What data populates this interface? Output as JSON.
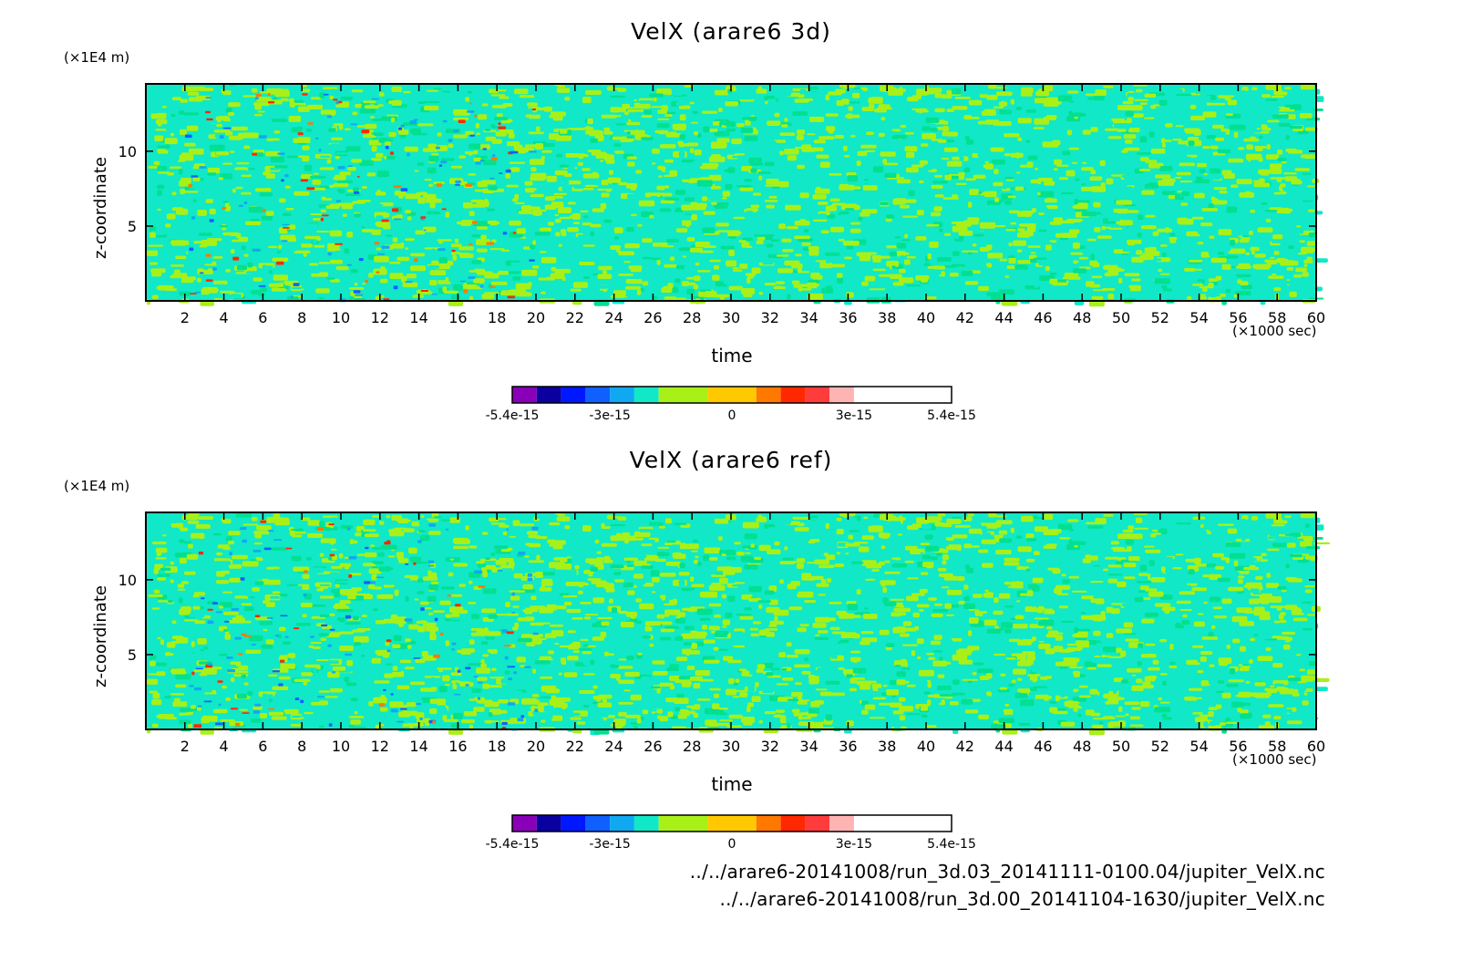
{
  "chart_data": [
    {
      "type": "heatmap",
      "title": "VelX (arare6 3d)",
      "xlabel": "time",
      "x_unit": "(×1000 sec)",
      "ylabel": "z-coordinate",
      "y_unit": "(×1E4 m)",
      "xlim": [
        0,
        60
      ],
      "ylim": [
        0,
        14.5
      ],
      "x_ticks": [
        2,
        4,
        6,
        8,
        10,
        12,
        14,
        16,
        18,
        20,
        22,
        24,
        26,
        28,
        30,
        32,
        34,
        36,
        38,
        40,
        42,
        44,
        46,
        48,
        50,
        52,
        54,
        56,
        58,
        60
      ],
      "y_ticks": [
        5,
        10
      ],
      "colorbar": {
        "levels": [
          -5.4e-15,
          -4.8e-15,
          -4.2e-15,
          -3.6e-15,
          -3e-15,
          -2.4e-15,
          -1.8e-15,
          -6e-16,
          6e-16,
          1.2e-15,
          1.8e-15,
          2.4e-15,
          3e-15,
          4.2e-15,
          5.4e-15
        ],
        "tick_labels": [
          "-5.4e-15",
          "-3e-15",
          "0",
          "3e-15",
          "5.4e-15"
        ]
      },
      "field": "dominant near-zero noise (cyan/green/yellow-green) with sparse blue and red extremes near t=3-18 (×1000 sec)"
    },
    {
      "type": "heatmap",
      "title": "VelX (arare6 ref)",
      "xlabel": "time",
      "x_unit": "(×1000 sec)",
      "ylabel": "z-coordinate",
      "y_unit": "(×1E4 m)",
      "xlim": [
        0,
        60
      ],
      "ylim": [
        0,
        14.5
      ],
      "x_ticks": [
        2,
        4,
        6,
        8,
        10,
        12,
        14,
        16,
        18,
        20,
        22,
        24,
        26,
        28,
        30,
        32,
        34,
        36,
        38,
        40,
        42,
        44,
        46,
        48,
        50,
        52,
        54,
        56,
        58,
        60
      ],
      "y_ticks": [
        5,
        10
      ],
      "colorbar": {
        "levels": [
          -5.4e-15,
          -4.8e-15,
          -4.2e-15,
          -3.6e-15,
          -3e-15,
          -2.4e-15,
          -1.8e-15,
          -6e-16,
          6e-16,
          1.2e-15,
          1.8e-15,
          2.4e-15,
          3e-15,
          4.2e-15,
          5.4e-15
        ],
        "tick_labels": [
          "-5.4e-15",
          "-3e-15",
          "0",
          "3e-15",
          "5.4e-15"
        ]
      },
      "field": "dominant near-zero noise (cyan/green/yellow-green) with sparse blue and red extremes near t=3-19 (×1000 sec)"
    }
  ],
  "colors": {
    "palette": [
      "#8a00b8",
      "#0a00a0",
      "#0018ff",
      "#1060ff",
      "#10a8f0",
      "#10e8c8",
      "#a8f018",
      "#ffc800",
      "#ff7800",
      "#ff2800",
      "#ff3c3c",
      "#ffb4b4"
    ],
    "field_dominant": [
      "#10e8c8",
      "#a8f018",
      "#00e090"
    ]
  },
  "files": [
    "../../arare6-20141008/run_3d.03_20141111-0100.04/jupiter_VelX.nc",
    "../../arare6-20141008/run_3d.00_20141104-1630/jupiter_VelX.nc"
  ]
}
